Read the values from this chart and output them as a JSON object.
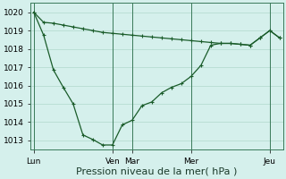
{
  "background_color": "#d5f0ec",
  "grid_color": "#b0d8cc",
  "line_color": "#1a5c2a",
  "ylim": [
    1012.5,
    1020.5
  ],
  "yticks": [
    1013,
    1014,
    1015,
    1016,
    1017,
    1018,
    1019,
    1020
  ],
  "xlabel": "Pression niveau de la mer( hPa )",
  "xlabel_fontsize": 8,
  "tick_fontsize": 6.5,
  "day_labels": [
    "Lun",
    "Ven",
    "Mar",
    "Mer",
    "Jeu"
  ],
  "day_x": [
    0,
    48,
    60,
    96,
    144
  ],
  "xlim": [
    -2,
    152
  ],
  "series_top": {
    "x": [
      0,
      6,
      12,
      18,
      24,
      30,
      36,
      42,
      48,
      54,
      60,
      66,
      72,
      78,
      84,
      90,
      96,
      102,
      108,
      114,
      120,
      126,
      132,
      138,
      144,
      150
    ],
    "y": [
      1020.0,
      1019.45,
      1019.4,
      1019.3,
      1019.2,
      1019.1,
      1019.0,
      1018.9,
      1018.85,
      1018.8,
      1018.75,
      1018.7,
      1018.65,
      1018.6,
      1018.55,
      1018.5,
      1018.45,
      1018.4,
      1018.35,
      1018.3,
      1018.3,
      1018.25,
      1018.2,
      1018.6,
      1019.0,
      1018.6
    ]
  },
  "series_bot": {
    "x": [
      0,
      6,
      12,
      18,
      24,
      30,
      36,
      42,
      48,
      54,
      60,
      66,
      72,
      78,
      84,
      90,
      96,
      102,
      108,
      114,
      120,
      126,
      132,
      138,
      144,
      150
    ],
    "y": [
      1020.0,
      1018.75,
      1016.85,
      1015.9,
      1015.0,
      1013.3,
      1013.05,
      1012.75,
      1012.75,
      1013.85,
      1014.1,
      1014.9,
      1015.1,
      1015.6,
      1015.9,
      1016.1,
      1016.5,
      1017.1,
      1018.2,
      1018.3,
      1018.3,
      1018.25,
      1018.2,
      1018.6,
      1019.0,
      1018.6
    ]
  }
}
